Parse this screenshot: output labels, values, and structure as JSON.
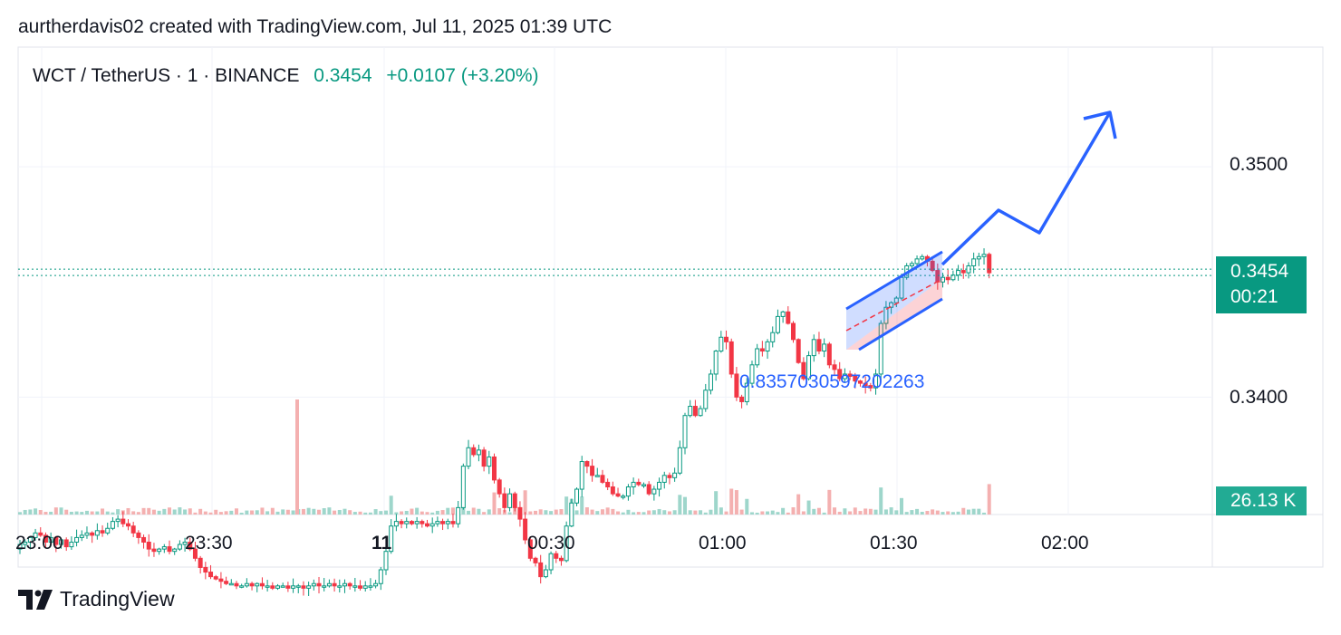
{
  "header": {
    "text": "aurtherdavis02 created with TradingView.com, Jul 11, 2025 01:39 UTC"
  },
  "legend": {
    "symbol": "WCT / TetherUS · 1 · BINANCE",
    "last": "0.3454",
    "change": "+0.0107 (+3.20%)"
  },
  "price_tag": {
    "price": "0.3454",
    "countdown": "00:21"
  },
  "volume_tag": {
    "value": "26.13 K"
  },
  "annotation": {
    "text": "0.8357030597202263"
  },
  "footer": {
    "brand": "TradingView"
  },
  "colors": {
    "up": "#089981",
    "down": "#f23645",
    "arrow": "#2962ff",
    "grid": "#f0f3fa"
  },
  "chart_data": {
    "type": "candlestick",
    "x_ticks": [
      "23:00",
      "23:30",
      "11",
      "00:30",
      "01:00",
      "01:30",
      "02:00"
    ],
    "y_ticks": [
      "0.3500",
      "0.3400"
    ],
    "ylim": [
      0.3349,
      0.3552
    ],
    "last_price": 0.3454,
    "candles_close": [
      0.3336,
      0.3337,
      0.3339,
      0.3341,
      0.334,
      0.3337,
      0.3339,
      0.3336,
      0.3338,
      0.3335,
      0.3337,
      0.3339,
      0.334,
      0.3341,
      0.334,
      0.3342,
      0.3341,
      0.3343,
      0.3346,
      0.3347,
      0.3345,
      0.3344,
      0.3341,
      0.3339,
      0.3337,
      0.3334,
      0.3333,
      0.3334,
      0.3335,
      0.3333,
      0.3334,
      0.3336,
      0.3337,
      0.3334,
      0.333,
      0.3326,
      0.3324,
      0.3322,
      0.3321,
      0.332,
      0.3319,
      0.3319,
      0.3318,
      0.3318,
      0.3319,
      0.3318,
      0.3319,
      0.3318,
      0.3318,
      0.3317,
      0.3318,
      0.3318,
      0.3317,
      0.3318,
      0.3318,
      0.3317,
      0.3318,
      0.3319,
      0.3318,
      0.3318,
      0.3319,
      0.3318,
      0.3318,
      0.3319,
      0.3318,
      0.3318,
      0.3317,
      0.3318,
      0.3318,
      0.3319,
      0.3325,
      0.3333,
      0.3344,
      0.3346,
      0.3345,
      0.3346,
      0.3345,
      0.3346,
      0.3345,
      0.3344,
      0.3345,
      0.3346,
      0.3345,
      0.3346,
      0.3345,
      0.3352,
      0.337,
      0.3378,
      0.3375,
      0.3377,
      0.337,
      0.3374,
      0.3364,
      0.3358,
      0.3352,
      0.3358,
      0.3352,
      0.3347,
      0.3338,
      0.333,
      0.3328,
      0.3322,
      0.3325,
      0.3332,
      0.333,
      0.3329,
      0.3344,
      0.3354,
      0.336,
      0.3372,
      0.337,
      0.3366,
      0.3366,
      0.3363,
      0.3361,
      0.3358,
      0.3357,
      0.3357,
      0.3361,
      0.3363,
      0.3362,
      0.3362,
      0.3358,
      0.336,
      0.3363,
      0.3366,
      0.3365,
      0.3367,
      0.3378,
      0.3392,
      0.3396,
      0.3392,
      0.3395,
      0.3403,
      0.341,
      0.342,
      0.3426,
      0.3424,
      0.341,
      0.34,
      0.3398,
      0.3406,
      0.3414,
      0.3421,
      0.342,
      0.3424,
      0.3428,
      0.3435,
      0.3437,
      0.3432,
      0.3425,
      0.3415,
      0.3408,
      0.3418,
      0.3425,
      0.342,
      0.3423,
      0.3414,
      0.3412,
      0.3408,
      0.341,
      0.3409,
      0.3407,
      0.3406,
      0.3405,
      0.3404,
      0.341,
      0.3432,
      0.3439,
      0.3441,
      0.3443,
      0.3452,
      0.3457,
      0.3458,
      0.346,
      0.3461,
      0.3459,
      0.3455,
      0.345,
      0.3452,
      0.3451,
      0.3453,
      0.3455,
      0.3454,
      0.3457,
      0.346,
      0.3461,
      0.3462,
      0.3454
    ]
  }
}
